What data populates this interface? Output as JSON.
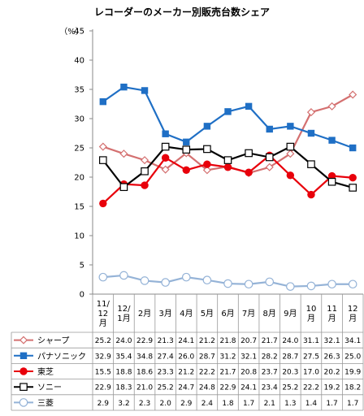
{
  "chart_data": {
    "type": "line",
    "title": "レコーダーのメーカー別販売台数シェア",
    "ylabel": "（%）",
    "ylim": [
      0,
      45
    ],
    "yticks": [
      0,
      5,
      10,
      15,
      20,
      25,
      30,
      35,
      40,
      45
    ],
    "grid": false,
    "legend": "table-below",
    "categories": [
      [
        "11/",
        "12",
        "月"
      ],
      [
        "12/",
        "1月"
      ],
      [
        "2月"
      ],
      [
        "3月"
      ],
      [
        "4月"
      ],
      [
        "5月"
      ],
      [
        "6月"
      ],
      [
        "7月"
      ],
      [
        "8月"
      ],
      [
        "9月"
      ],
      [
        "10",
        "月"
      ],
      [
        "11",
        "月"
      ],
      [
        "12",
        "月"
      ]
    ],
    "series": [
      {
        "name": "シャープ",
        "color": "#D47070",
        "marker": "diamond-open",
        "values": [
          25.2,
          24.0,
          22.9,
          21.3,
          24.1,
          21.2,
          21.8,
          20.7,
          21.7,
          24.0,
          31.1,
          32.1,
          34.1
        ],
        "labels": [
          "25.2",
          "24.0",
          "22.9",
          "21.3",
          "24.1",
          "21.2",
          "21.8",
          "20.7",
          "21.7",
          "24.0",
          "31.1",
          "32.1",
          "34.1"
        ]
      },
      {
        "name": "パナソニック",
        "color": "#1F6FC5",
        "marker": "square-filled",
        "values": [
          32.9,
          35.4,
          34.8,
          27.4,
          26.0,
          28.7,
          31.2,
          32.1,
          28.2,
          28.7,
          27.5,
          26.3,
          25.0
        ],
        "labels": [
          "32.9",
          "35.4",
          "34.8",
          "27.4",
          "26.0",
          "28.7",
          "31.2",
          "32.1",
          "28.2",
          "28.7",
          "27.5",
          "26.3",
          "25.0"
        ]
      },
      {
        "name": "東芝",
        "color": "#E8000B",
        "marker": "circle-filled",
        "values": [
          15.5,
          18.8,
          18.6,
          23.3,
          21.2,
          22.2,
          21.7,
          20.8,
          23.7,
          20.3,
          17.0,
          20.2,
          19.9
        ],
        "labels": [
          "15.5",
          "18.8",
          "18.6",
          "23.3",
          "21.2",
          "22.2",
          "21.7",
          "20.8",
          "23.7",
          "20.3",
          "17.0",
          "20.2",
          "19.9"
        ]
      },
      {
        "name": "ソニー",
        "color": "#000000",
        "marker": "square-open",
        "values": [
          22.9,
          18.3,
          21.0,
          25.2,
          24.7,
          24.8,
          22.9,
          24.1,
          23.4,
          25.2,
          22.2,
          19.2,
          18.2
        ],
        "labels": [
          "22.9",
          "18.3",
          "21.0",
          "25.2",
          "24.7",
          "24.8",
          "22.9",
          "24.1",
          "23.4",
          "25.2",
          "22.2",
          "19.2",
          "18.2"
        ]
      },
      {
        "name": "三菱",
        "color": "#95B3D7",
        "marker": "circle-open",
        "values": [
          2.9,
          3.2,
          2.3,
          2.0,
          2.9,
          2.4,
          1.8,
          1.7,
          2.1,
          1.3,
          1.4,
          1.7,
          1.7
        ],
        "labels": [
          "2.9",
          "3.2",
          "2.3",
          "2.0",
          "2.9",
          "2.4",
          "1.8",
          "1.7",
          "2.1",
          "1.3",
          "1.4",
          "1.7",
          "1.7"
        ]
      }
    ]
  }
}
